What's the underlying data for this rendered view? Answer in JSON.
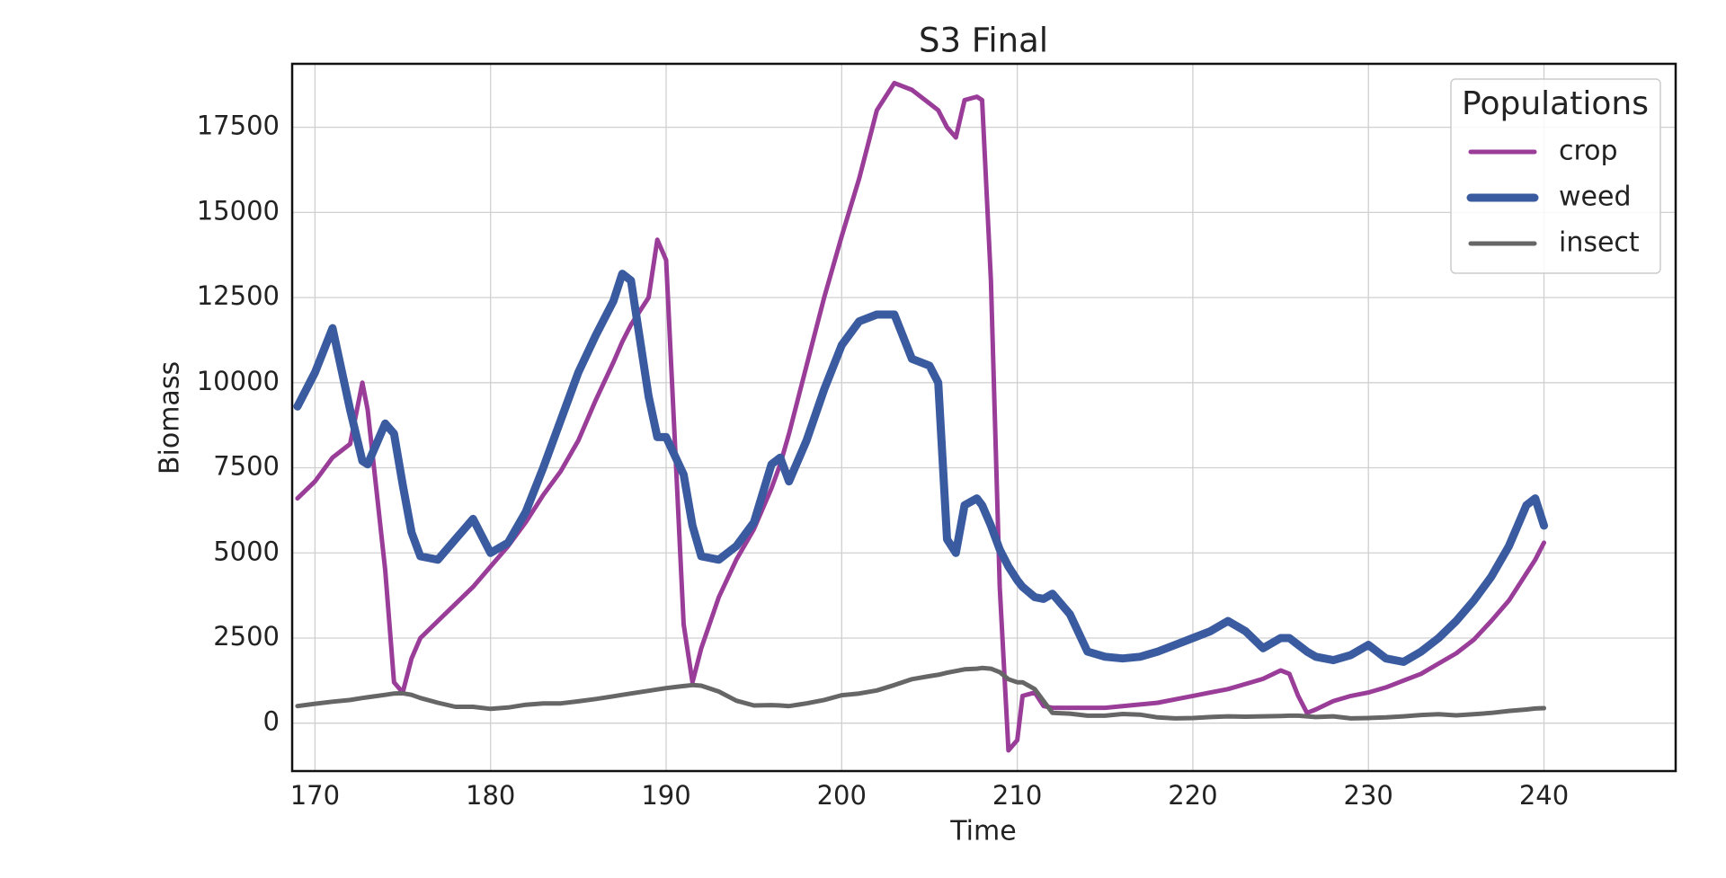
{
  "chart_data": {
    "type": "line",
    "title": "S3 Final",
    "x_label": "Time",
    "y_label": "Biomass",
    "legend_title": "Populations",
    "legend_position": "upper right",
    "grid": true,
    "xlim": [
      168.7,
      247.5
    ],
    "xticks": [
      170,
      180,
      190,
      200,
      210,
      220,
      230,
      240
    ],
    "ylim": [
      -1407,
      19365
    ],
    "yticks": [
      0,
      2500,
      5000,
      7500,
      10000,
      12500,
      15000,
      17500
    ],
    "x": [
      169,
      170,
      171,
      172,
      172.7,
      173,
      174,
      174.5,
      175,
      175.5,
      176,
      177,
      178,
      179,
      180,
      181,
      182,
      183,
      184,
      185,
      186,
      187,
      187.5,
      188,
      189,
      189.5,
      190,
      191,
      191.5,
      192,
      193,
      194,
      195,
      196,
      196.5,
      197,
      198,
      199,
      200,
      201,
      202,
      203,
      204,
      205,
      205.5,
      206,
      206.5,
      207,
      207.7,
      208,
      208.5,
      209,
      209.5,
      210,
      210.3,
      211,
      211.5,
      212,
      213,
      214,
      215,
      216,
      217,
      218,
      219,
      220,
      221,
      222,
      223,
      224,
      225,
      225.5,
      226,
      226.5,
      227,
      228,
      229,
      230,
      231,
      232,
      233,
      234,
      235,
      236,
      237,
      238,
      239,
      239.5,
      240
    ],
    "series": [
      {
        "name": "crop",
        "color": "#993d99",
        "values": [
          6600,
          7100,
          7800,
          8200,
          10000,
          9200,
          4500,
          1200,
          900,
          1900,
          2500,
          3000,
          3500,
          4000,
          4600,
          5200,
          5900,
          6700,
          7400,
          8300,
          9500,
          10600,
          11200,
          11700,
          12500,
          14200,
          13600,
          2900,
          1200,
          2200,
          3700,
          4800,
          5700,
          6900,
          7600,
          8500,
          10500,
          12500,
          14300,
          16000,
          18000,
          18800,
          18600,
          18200,
          18000,
          17500,
          17200,
          18300,
          18400,
          18300,
          13000,
          4000,
          -800,
          -500,
          800,
          900,
          500,
          450,
          450,
          450,
          450,
          500,
          550,
          600,
          700,
          800,
          900,
          1000,
          1150,
          1300,
          1550,
          1450,
          800,
          300,
          400,
          650,
          800,
          900,
          1050,
          1250,
          1450,
          1750,
          2050,
          2450,
          3000,
          3600,
          4400,
          4800,
          5300
        ]
      },
      {
        "name": "weed",
        "color": "#3a5ba0",
        "values": [
          9300,
          10300,
          11600,
          9200,
          7700,
          7600,
          8800,
          8500,
          7000,
          5600,
          4900,
          4800,
          5400,
          6000,
          5000,
          5300,
          6200,
          7500,
          8900,
          10300,
          11400,
          12400,
          13200,
          13000,
          9600,
          8400,
          8400,
          7300,
          5800,
          4900,
          4800,
          5200,
          5900,
          7600,
          7800,
          7100,
          8300,
          9800,
          11100,
          11800,
          12000,
          12000,
          10700,
          10500,
          10000,
          5400,
          5000,
          6400,
          6600,
          6400,
          5800,
          5100,
          4600,
          4200,
          4000,
          3700,
          3650,
          3800,
          3200,
          2100,
          1950,
          1900,
          1950,
          2100,
          2300,
          2500,
          2700,
          3000,
          2700,
          2200,
          2500,
          2500,
          2300,
          2100,
          1950,
          1850,
          2000,
          2300,
          1900,
          1800,
          2100,
          2500,
          3000,
          3600,
          4300,
          5200,
          6400,
          6600,
          5800
        ]
      },
      {
        "name": "insect",
        "color": "#666666",
        "values": [
          500,
          570,
          630,
          680,
          740,
          760,
          830,
          870,
          880,
          830,
          740,
          600,
          480,
          480,
          420,
          460,
          540,
          580,
          580,
          640,
          710,
          790,
          830,
          870,
          950,
          990,
          1030,
          1090,
          1120,
          1100,
          930,
          660,
          520,
          530,
          520,
          500,
          580,
          680,
          820,
          870,
          960,
          1120,
          1290,
          1380,
          1420,
          1480,
          1530,
          1580,
          1600,
          1620,
          1600,
          1500,
          1290,
          1200,
          1200,
          1000,
          650,
          300,
          280,
          220,
          220,
          270,
          250,
          170,
          140,
          150,
          180,
          200,
          190,
          200,
          210,
          220,
          220,
          200,
          180,
          200,
          140,
          150,
          170,
          200,
          240,
          260,
          230,
          260,
          300,
          360,
          400,
          430,
          440
        ]
      }
    ]
  }
}
